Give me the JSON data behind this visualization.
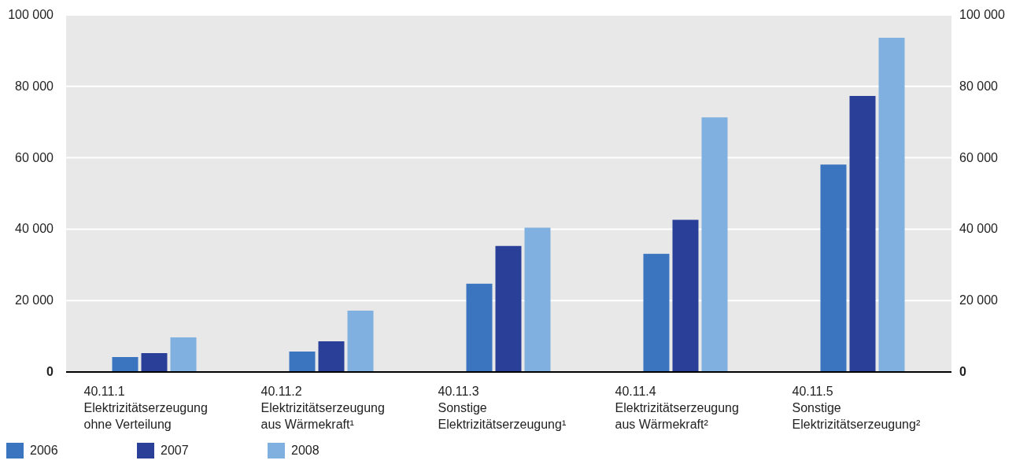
{
  "chart_data": {
    "type": "bar",
    "categories": [
      "40.11.1\nElektrizitätserzeugung\nohne Verteilung",
      "40.11.2\nElektrizitätserzeugung\naus Wärmekraft¹",
      "40.11.3\nSonstige\nElektrizitätserzeugung¹",
      "40.11.4\nElektrizitätserzeugung\naus Wärmekraft²",
      "40.11.5\nSonstige\nElektrizitätserzeugung²"
    ],
    "series": [
      {
        "name": "2006",
        "color": "#3b74bf",
        "values": [
          4200,
          5700,
          24700,
          33100,
          58100
        ]
      },
      {
        "name": "2007",
        "color": "#2a3f97",
        "values": [
          5300,
          8600,
          35300,
          42600,
          77300
        ]
      },
      {
        "name": "2008",
        "color": "#7fb0e0",
        "values": [
          9700,
          17200,
          40400,
          71300,
          93600
        ]
      }
    ],
    "ylim": [
      0,
      100000
    ],
    "yticks": [
      {
        "value": 0,
        "label": "0"
      },
      {
        "value": 20000,
        "label": "20 000"
      },
      {
        "value": 40000,
        "label": "40 000"
      },
      {
        "value": 60000,
        "label": "60 000"
      },
      {
        "value": 80000,
        "label": "80 000"
      },
      {
        "value": 100000,
        "label": "100 000"
      }
    ],
    "y2lim": [
      0,
      100000
    ],
    "y2ticks": [
      {
        "value": 0,
        "label": "0"
      },
      {
        "value": 20000,
        "label": "20 000"
      },
      {
        "value": 40000,
        "label": "40 000"
      },
      {
        "value": 60000,
        "label": "60 000"
      },
      {
        "value": 80000,
        "label": "80 000"
      },
      {
        "value": 100000,
        "label": "100 000"
      }
    ],
    "grid": "y",
    "legend": "bottom left"
  }
}
